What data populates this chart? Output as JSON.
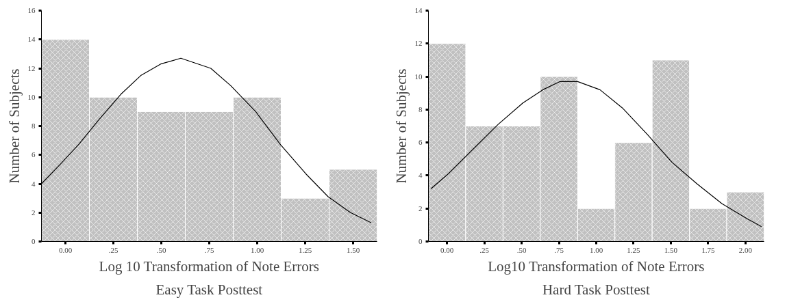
{
  "chart_data": [
    {
      "type": "histogram",
      "title": "Easy Task Posttest",
      "xlabel": "Log 10 Transformation of Note Errors",
      "ylabel": "Number of Subjects",
      "bins": [
        -0.125,
        0.125,
        0.375,
        0.625,
        0.875,
        1.125,
        1.375,
        1.625
      ],
      "values": [
        14,
        10,
        9,
        9,
        10,
        3,
        5
      ],
      "color": "#c0c0c0",
      "series": [
        {
          "type": "line",
          "color": "#000000",
          "x": [
            -0.125,
            -0.023,
            0.068,
            0.172,
            0.289,
            0.393,
            0.497,
            0.602,
            0.758,
            0.862,
            0.992,
            1.122,
            1.253,
            1.37,
            1.487,
            1.594
          ],
          "values": [
            4.0,
            5.4,
            6.7,
            8.4,
            10.2,
            11.5,
            12.3,
            12.7,
            12.0,
            10.8,
            9.0,
            6.7,
            4.7,
            3.1,
            2.0,
            1.3
          ]
        }
      ],
      "xlim": [
        -0.125,
        1.625
      ],
      "ylim": [
        0,
        16
      ],
      "xticks": [
        {
          "value": 0,
          "label": "0.00"
        },
        {
          "value": 0.25,
          "label": ".25"
        },
        {
          "value": 0.5,
          "label": ".50"
        },
        {
          "value": 0.75,
          "label": ".75"
        },
        {
          "value": 1,
          "label": "1.00"
        },
        {
          "value": 1.25,
          "label": "1.25"
        },
        {
          "value": 1.5,
          "label": "1.50"
        }
      ],
      "yticks": [
        0,
        2,
        4,
        6,
        8,
        10,
        12,
        14,
        16
      ],
      "grid": false
    },
    {
      "type": "histogram",
      "title": "Hard Task Posttest",
      "xlabel": "Log10 Transformation of Note Errors",
      "ylabel": "Number of Subjects",
      "bins": [
        -0.125,
        0.125,
        0.375,
        0.625,
        0.875,
        1.125,
        1.375,
        1.625,
        1.875,
        2.125
      ],
      "values": [
        12,
        7,
        7,
        10,
        2,
        6,
        11,
        2,
        3
      ],
      "color": "#c0c0c0",
      "series": [
        {
          "type": "line",
          "color": "#000000",
          "x": [
            -0.108,
            0.008,
            0.175,
            0.342,
            0.508,
            0.642,
            0.758,
            0.875,
            1.025,
            1.175,
            1.342,
            1.508,
            1.675,
            1.842,
            2.008,
            2.108
          ],
          "values": [
            3.2,
            4.1,
            5.6,
            7.1,
            8.4,
            9.2,
            9.7,
            9.7,
            9.2,
            8.1,
            6.5,
            4.8,
            3.5,
            2.3,
            1.4,
            0.9
          ]
        }
      ],
      "xlim": [
        -0.125,
        2.125
      ],
      "ylim": [
        0,
        14
      ],
      "xticks": [
        {
          "value": 0,
          "label": "0.00"
        },
        {
          "value": 0.25,
          "label": ".25"
        },
        {
          "value": 0.5,
          "label": ".50"
        },
        {
          "value": 0.75,
          "label": ".75"
        },
        {
          "value": 1,
          "label": "1.00"
        },
        {
          "value": 1.25,
          "label": "1.25"
        },
        {
          "value": 1.5,
          "label": "1.50"
        },
        {
          "value": 1.75,
          "label": "1.75"
        },
        {
          "value": 2,
          "label": "2.00"
        }
      ],
      "yticks": [
        0,
        2,
        4,
        6,
        8,
        10,
        12,
        14
      ],
      "grid": false
    }
  ]
}
